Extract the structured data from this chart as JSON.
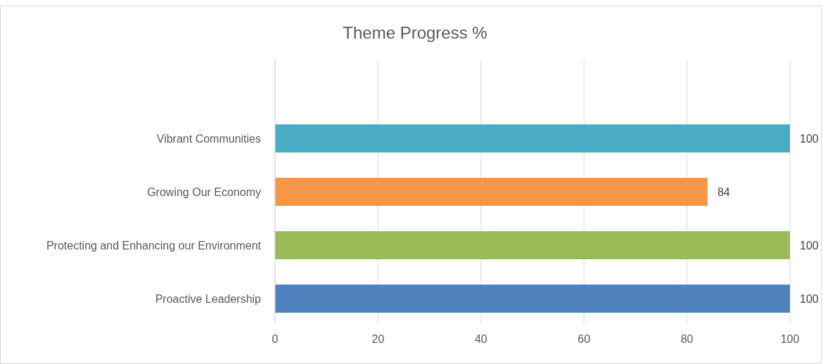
{
  "chart_data": {
    "type": "bar",
    "orientation": "horizontal",
    "title": "Theme Progress %",
    "categories": [
      "Vibrant Communities",
      "Growing Our Economy",
      "Protecting and Enhancing our Environment",
      "Proactive Leadership"
    ],
    "values": [
      100,
      84,
      100,
      100
    ],
    "colors": [
      "#4bacc6",
      "#f79646",
      "#9bbb59",
      "#4f81bd"
    ],
    "xlim": [
      0,
      100
    ],
    "xticks": [
      0,
      20,
      40,
      60,
      80,
      100
    ],
    "grid": "x",
    "data_labels": true
  }
}
